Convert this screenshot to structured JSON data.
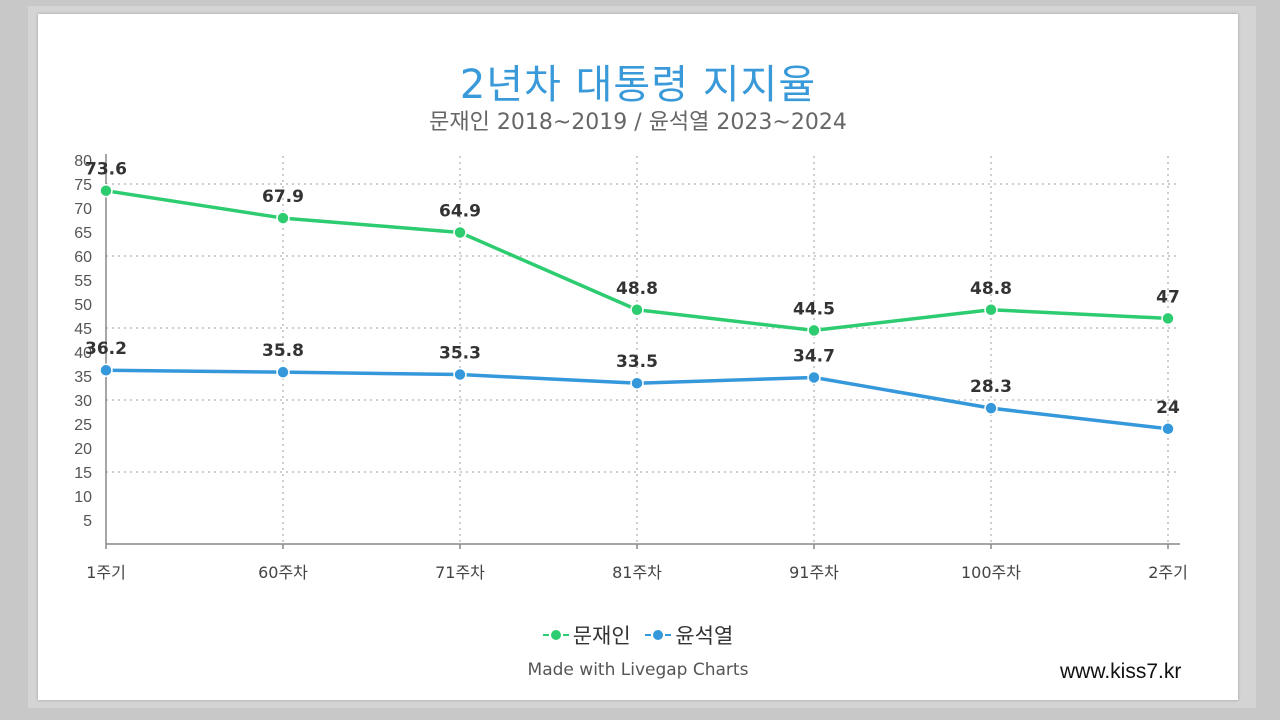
{
  "chart_data": {
    "type": "line",
    "title": "2년차 대통령 지지율",
    "subtitle": "문재인 2018~2019 / 윤석열 2023~2024",
    "categories": [
      "1주기",
      "60주차",
      "71주차",
      "81주차",
      "91주차",
      "100주차",
      "2주기"
    ],
    "ylim": [
      0,
      80
    ],
    "yticks": [
      5,
      10,
      15,
      20,
      25,
      30,
      35,
      40,
      45,
      50,
      55,
      60,
      65,
      70,
      75,
      80
    ],
    "grid": true,
    "legend_position": "bottom",
    "series": [
      {
        "name": "문재인",
        "color": "#2ecc71",
        "values": [
          73.6,
          67.9,
          64.9,
          48.8,
          44.5,
          48.8,
          47
        ]
      },
      {
        "name": "윤석열",
        "color": "#3498db",
        "values": [
          36.2,
          35.8,
          35.3,
          33.5,
          34.7,
          28.3,
          24
        ]
      }
    ],
    "credit": "Made with Livegap Charts"
  },
  "watermark": "www.kiss7.kr"
}
